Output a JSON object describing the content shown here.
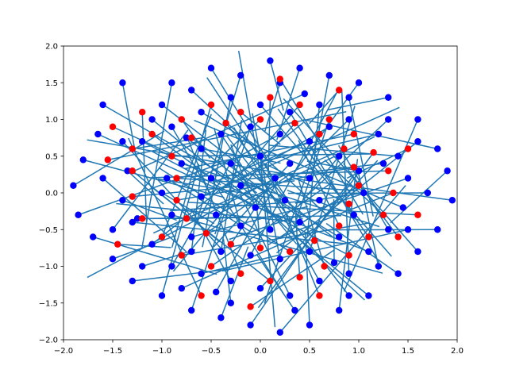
{
  "chart_data": {
    "type": "scatter",
    "title": "",
    "xlabel": "",
    "ylabel": "",
    "xlim": [
      -2.0,
      2.0
    ],
    "ylim": [
      -2.0,
      2.0
    ],
    "grid": false,
    "legend": "none",
    "x_ticks": [
      "−2.0",
      "−1.5",
      "−1.0",
      "−0.5",
      "0.0",
      "0.5",
      "1.0",
      "1.5",
      "2.0"
    ],
    "y_ticks": [
      "−2.0",
      "−1.5",
      "−1.0",
      "−0.5",
      "0.0",
      "0.5",
      "1.0",
      "1.5",
      "2.0"
    ],
    "colors": {
      "line": "#1f77b4",
      "blue_points": "#0000ff",
      "red_points": "#ff0000"
    },
    "series": [
      {
        "role": "blue_points",
        "color": "#0000ff",
        "points": [
          [
            -1.6,
            1.2
          ],
          [
            -1.4,
            1.5
          ],
          [
            -1.1,
            1.0
          ],
          [
            -0.9,
            1.5
          ],
          [
            -0.5,
            1.7
          ],
          [
            -0.2,
            1.6
          ],
          [
            0.1,
            1.8
          ],
          [
            0.4,
            1.7
          ],
          [
            0.7,
            1.6
          ],
          [
            1.0,
            1.5
          ],
          [
            1.3,
            1.3
          ],
          [
            1.6,
            1.0
          ],
          [
            1.8,
            0.6
          ],
          [
            1.9,
            0.3
          ],
          [
            1.95,
            -0.1
          ],
          [
            1.8,
            -0.5
          ],
          [
            1.6,
            -0.8
          ],
          [
            1.4,
            -1.1
          ],
          [
            1.1,
            -1.4
          ],
          [
            0.8,
            -1.6
          ],
          [
            0.5,
            -1.8
          ],
          [
            0.2,
            -1.9
          ],
          [
            -0.1,
            -1.8
          ],
          [
            -0.4,
            -1.7
          ],
          [
            -0.7,
            -1.6
          ],
          [
            -1.0,
            -1.4
          ],
          [
            -1.3,
            -1.2
          ],
          [
            -1.5,
            -0.9
          ],
          [
            -1.7,
            -0.6
          ],
          [
            -1.85,
            -0.3
          ],
          [
            -1.9,
            0.1
          ],
          [
            -1.8,
            0.45
          ],
          [
            -1.65,
            0.8
          ],
          [
            -1.2,
            0.7
          ],
          [
            -0.9,
            0.9
          ],
          [
            -0.6,
            1.1
          ],
          [
            -0.3,
            1.3
          ],
          [
            0.0,
            1.2
          ],
          [
            0.3,
            1.1
          ],
          [
            0.6,
            1.2
          ],
          [
            0.9,
            1.0
          ],
          [
            1.2,
            0.8
          ],
          [
            1.4,
            0.5
          ],
          [
            1.5,
            0.2
          ],
          [
            1.45,
            -0.2
          ],
          [
            1.3,
            -0.5
          ],
          [
            1.1,
            -0.8
          ],
          [
            0.9,
            -1.1
          ],
          [
            0.6,
            -1.2
          ],
          [
            0.3,
            -1.4
          ],
          [
            0.0,
            -1.3
          ],
          [
            -0.3,
            -1.2
          ],
          [
            -0.6,
            -1.1
          ],
          [
            -0.9,
            -1.0
          ],
          [
            -1.1,
            -0.7
          ],
          [
            -1.3,
            -0.4
          ],
          [
            -1.4,
            -0.1
          ],
          [
            -1.35,
            0.3
          ],
          [
            -0.8,
            0.4
          ],
          [
            -0.6,
            0.6
          ],
          [
            -0.4,
            0.8
          ],
          [
            -0.1,
            0.9
          ],
          [
            0.2,
            0.8
          ],
          [
            0.5,
            0.7
          ],
          [
            0.8,
            0.5
          ],
          [
            1.0,
            0.3
          ],
          [
            1.05,
            0.0
          ],
          [
            0.95,
            -0.3
          ],
          [
            0.8,
            -0.6
          ],
          [
            0.5,
            -0.8
          ],
          [
            0.2,
            -0.9
          ],
          [
            -0.1,
            -0.85
          ],
          [
            -0.4,
            -0.8
          ],
          [
            -0.7,
            -0.6
          ],
          [
            -0.9,
            -0.3
          ],
          [
            -1.0,
            0.0
          ],
          [
            -0.95,
            0.2
          ],
          [
            -0.5,
            0.2
          ],
          [
            -0.3,
            0.4
          ],
          [
            0.0,
            0.5
          ],
          [
            0.3,
            0.4
          ],
          [
            0.5,
            0.2
          ],
          [
            0.6,
            -0.1
          ],
          [
            0.4,
            -0.4
          ],
          [
            0.1,
            -0.5
          ],
          [
            -0.2,
            -0.45
          ],
          [
            -0.45,
            -0.3
          ],
          [
            -0.6,
            -0.05
          ],
          [
            -1.0,
            1.2
          ],
          [
            -0.7,
            1.4
          ],
          [
            0.2,
            1.5
          ],
          [
            0.9,
            1.3
          ],
          [
            1.3,
            1.0
          ],
          [
            1.6,
            0.7
          ],
          [
            1.7,
            0.0
          ],
          [
            1.5,
            -0.5
          ],
          [
            1.2,
            -1.0
          ],
          [
            0.9,
            -1.4
          ],
          [
            0.35,
            -1.6
          ],
          [
            -0.3,
            -1.5
          ],
          [
            -0.8,
            -1.3
          ],
          [
            -1.2,
            -1.0
          ],
          [
            -1.5,
            -0.5
          ],
          [
            -1.6,
            0.2
          ],
          [
            -1.4,
            0.7
          ],
          [
            -0.2,
            0.1
          ],
          [
            0.15,
            0.2
          ],
          [
            0.25,
            -0.1
          ],
          [
            -0.05,
            -0.2
          ],
          [
            0.7,
            0.9
          ],
          [
            -0.7,
            -0.8
          ],
          [
            0.75,
            -0.95
          ],
          [
            -0.75,
            0.75
          ],
          [
            1.25,
            0.4
          ],
          [
            -1.25,
            -0.35
          ],
          [
            0.45,
            1.35
          ],
          [
            -0.45,
            -1.35
          ]
        ]
      },
      {
        "role": "red_points",
        "color": "#ff0000",
        "points": [
          [
            -1.3,
            0.6
          ],
          [
            -1.1,
            0.8
          ],
          [
            -0.8,
            1.0
          ],
          [
            -0.5,
            1.2
          ],
          [
            -0.2,
            1.1
          ],
          [
            0.1,
            1.3
          ],
          [
            0.4,
            1.2
          ],
          [
            0.7,
            1.0
          ],
          [
            0.95,
            0.8
          ],
          [
            1.15,
            0.55
          ],
          [
            1.3,
            0.3
          ],
          [
            1.35,
            0.0
          ],
          [
            1.25,
            -0.3
          ],
          [
            1.1,
            -0.6
          ],
          [
            0.9,
            -0.85
          ],
          [
            0.65,
            -1.0
          ],
          [
            0.4,
            -1.15
          ],
          [
            0.1,
            -1.2
          ],
          [
            -0.2,
            -1.1
          ],
          [
            -0.5,
            -1.0
          ],
          [
            -0.8,
            -0.85
          ],
          [
            -1.0,
            -0.6
          ],
          [
            -1.2,
            -0.35
          ],
          [
            -1.3,
            -0.05
          ],
          [
            -1.3,
            0.3
          ],
          [
            -0.9,
            0.5
          ],
          [
            -0.7,
            0.75
          ],
          [
            -0.35,
            0.95
          ],
          [
            0.0,
            1.0
          ],
          [
            0.35,
            0.95
          ],
          [
            0.6,
            0.8
          ],
          [
            0.85,
            0.6
          ],
          [
            0.95,
            0.35
          ],
          [
            1.0,
            0.1
          ],
          [
            0.9,
            -0.15
          ],
          [
            0.8,
            -0.45
          ],
          [
            0.55,
            -0.65
          ],
          [
            0.3,
            -0.8
          ],
          [
            0.0,
            -0.75
          ],
          [
            -0.3,
            -0.7
          ],
          [
            -0.55,
            -0.55
          ],
          [
            -0.75,
            -0.35
          ],
          [
            -0.85,
            -0.1
          ],
          [
            -0.85,
            0.2
          ],
          [
            -1.5,
            0.9
          ],
          [
            -1.2,
            1.1
          ],
          [
            0.8,
            1.4
          ],
          [
            1.5,
            0.6
          ],
          [
            1.4,
            -0.6
          ],
          [
            0.6,
            -1.4
          ],
          [
            -0.6,
            -1.4
          ],
          [
            -1.45,
            -0.7
          ],
          [
            -1.55,
            0.45
          ],
          [
            0.2,
            1.55
          ],
          [
            1.6,
            -0.3
          ],
          [
            -0.1,
            -1.55
          ]
        ]
      }
    ]
  }
}
